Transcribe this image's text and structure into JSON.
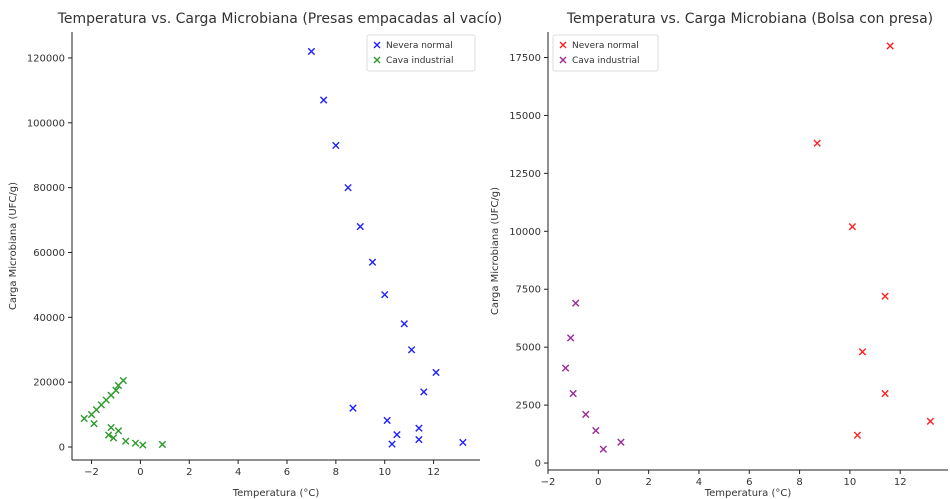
{
  "chart_data": [
    {
      "type": "scatter",
      "title": "Temperatura vs. Carga Microbiana (Presas empacadas al vacío)",
      "xlabel": "Temperatura (°C)",
      "ylabel": "Carga Microbiana (UFC/g)",
      "xlim": [
        -2.8,
        13.9
      ],
      "ylim": [
        -4000,
        128000
      ],
      "xticks": [
        -2,
        0,
        2,
        4,
        6,
        8,
        10,
        12
      ],
      "yticks": [
        0,
        20000,
        40000,
        60000,
        80000,
        100000,
        120000
      ],
      "grid": false,
      "legend_position": "top-right",
      "marker": "x",
      "series": [
        {
          "name": "Nevera normal",
          "color": "#1f1fff",
          "points": [
            [
              7.0,
              122000
            ],
            [
              7.5,
              107000
            ],
            [
              8.0,
              93000
            ],
            [
              8.5,
              80000
            ],
            [
              9.0,
              68000
            ],
            [
              9.5,
              57000
            ],
            [
              10.0,
              47000
            ],
            [
              10.8,
              38000
            ],
            [
              11.1,
              30000
            ],
            [
              12.1,
              23000
            ],
            [
              11.6,
              17000
            ],
            [
              8.7,
              12000
            ],
            [
              10.1,
              8200
            ],
            [
              11.4,
              5800
            ],
            [
              10.5,
              3800
            ],
            [
              11.4,
              2300
            ],
            [
              10.3,
              900
            ],
            [
              13.2,
              1400
            ]
          ]
        },
        {
          "name": "Cava industrial",
          "color": "#2a9a2a",
          "points": [
            [
              -2.3,
              8800
            ],
            [
              -2.0,
              10000
            ],
            [
              -1.8,
              11500
            ],
            [
              -1.6,
              13000
            ],
            [
              -1.4,
              14500
            ],
            [
              -1.2,
              16000
            ],
            [
              -1.0,
              17500
            ],
            [
              -0.9,
              19000
            ],
            [
              -0.7,
              20500
            ],
            [
              -1.9,
              7200
            ],
            [
              -1.2,
              6000
            ],
            [
              -1.3,
              3700
            ],
            [
              -1.1,
              2800
            ],
            [
              -0.9,
              5000
            ],
            [
              -0.6,
              1800
            ],
            [
              -0.2,
              1200
            ],
            [
              0.1,
              600
            ],
            [
              0.9,
              800
            ]
          ]
        }
      ]
    },
    {
      "type": "scatter",
      "title": "Temperatura vs. Carga Microbiana (Bolsa con presa)",
      "xlabel": "Temperatura (°C)",
      "ylabel": "Carga Microbiana (UFC/g)",
      "xlim": [
        -2.0,
        13.9
      ],
      "ylim": [
        -300,
        18600
      ],
      "xticks": [
        -2,
        0,
        2,
        4,
        6,
        8,
        10,
        12
      ],
      "yticks": [
        0,
        2500,
        5000,
        7500,
        10000,
        12500,
        15000,
        17500
      ],
      "grid": false,
      "legend_position": "top-left",
      "marker": "x",
      "series": [
        {
          "name": "Nevera normal",
          "color": "#ff2020",
          "points": [
            [
              11.6,
              18000
            ],
            [
              8.7,
              13800
            ],
            [
              10.1,
              10200
            ],
            [
              11.4,
              7200
            ],
            [
              10.5,
              4800
            ],
            [
              11.4,
              3000
            ],
            [
              10.3,
              1200
            ],
            [
              13.2,
              1800
            ]
          ]
        },
        {
          "name": "Cava industrial",
          "color": "#9a2a9a",
          "points": [
            [
              -0.9,
              6900
            ],
            [
              -1.1,
              5400
            ],
            [
              -1.3,
              4100
            ],
            [
              -1.0,
              3000
            ],
            [
              -0.5,
              2100
            ],
            [
              -0.1,
              1400
            ],
            [
              0.2,
              600
            ],
            [
              0.9,
              900
            ]
          ]
        }
      ]
    }
  ]
}
